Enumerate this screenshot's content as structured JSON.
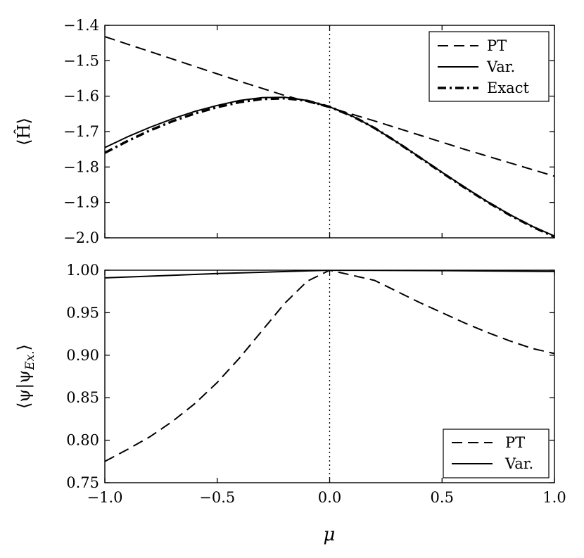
{
  "chart_data": [
    {
      "type": "line",
      "panel": "top",
      "ylabel": "⟨Ĥ⟩",
      "xlim": [
        -1.0,
        1.0
      ],
      "ylim": [
        -2.0,
        -1.4
      ],
      "yticks": [
        -2.0,
        -1.9,
        -1.8,
        -1.7,
        -1.6,
        -1.5,
        -1.4
      ],
      "ytick_labels": [
        "−2.0",
        "−1.9",
        "−1.8",
        "−1.7",
        "−1.6",
        "−1.5",
        "−1.4"
      ],
      "vline_x": 0.0,
      "legend": "top-right",
      "series": [
        {
          "name": "PT",
          "style": "dashed",
          "x": [
            -1.0,
            -0.8,
            -0.6,
            -0.4,
            -0.2,
            0.0,
            0.2,
            0.4,
            0.6,
            0.8,
            1.0
          ],
          "y": [
            -1.432,
            -1.474,
            -1.516,
            -1.558,
            -1.598,
            -1.632,
            -1.67,
            -1.71,
            -1.75,
            -1.788,
            -1.826
          ]
        },
        {
          "name": "Var.",
          "style": "solid",
          "x": [
            -1.0,
            -0.9,
            -0.8,
            -0.7,
            -0.6,
            -0.5,
            -0.4,
            -0.3,
            -0.2,
            -0.1,
            0.0,
            0.1,
            0.2,
            0.3,
            0.4,
            0.5,
            0.6,
            0.7,
            0.8,
            0.9,
            1.0
          ],
          "y": [
            -1.745,
            -1.715,
            -1.688,
            -1.664,
            -1.643,
            -1.626,
            -1.612,
            -1.604,
            -1.603,
            -1.612,
            -1.63,
            -1.656,
            -1.69,
            -1.73,
            -1.772,
            -1.815,
            -1.857,
            -1.897,
            -1.934,
            -1.967,
            -1.995
          ]
        },
        {
          "name": "Exact",
          "style": "dashdot",
          "x": [
            -1.0,
            -0.9,
            -0.8,
            -0.7,
            -0.6,
            -0.5,
            -0.4,
            -0.3,
            -0.2,
            -0.1,
            0.0,
            0.1,
            0.2,
            0.3,
            0.4,
            0.5,
            0.6,
            0.7,
            0.8,
            0.9,
            1.0
          ],
          "y": [
            -1.76,
            -1.727,
            -1.697,
            -1.671,
            -1.649,
            -1.631,
            -1.617,
            -1.608,
            -1.606,
            -1.613,
            -1.63,
            -1.656,
            -1.69,
            -1.73,
            -1.773,
            -1.816,
            -1.858,
            -1.898,
            -1.935,
            -1.968,
            -1.997
          ]
        }
      ]
    },
    {
      "type": "line",
      "panel": "bottom",
      "xlabel": "μ",
      "ylabel": "⟨ψ|ψ",
      "ylabel_sub": "Ex.",
      "ylabel_close": "⟩",
      "xlim": [
        -1.0,
        1.0
      ],
      "ylim": [
        0.75,
        1.0
      ],
      "xticks": [
        -1.0,
        -0.5,
        0.0,
        0.5,
        1.0
      ],
      "xtick_labels": [
        "−1.0",
        "−0.5",
        "0.0",
        "0.5",
        "1.0"
      ],
      "yticks": [
        0.75,
        0.8,
        0.85,
        0.9,
        0.95,
        1.0
      ],
      "ytick_labels": [
        "0.75",
        "0.80",
        "0.85",
        "0.90",
        "0.95",
        "1.00"
      ],
      "vline_x": 0.0,
      "legend": "bottom-right",
      "series": [
        {
          "name": "PT",
          "style": "dashed",
          "x": [
            -1.0,
            -0.9,
            -0.8,
            -0.7,
            -0.6,
            -0.5,
            -0.4,
            -0.3,
            -0.2,
            -0.1,
            0.0,
            0.1,
            0.2,
            0.3,
            0.4,
            0.5,
            0.6,
            0.7,
            0.8,
            0.9,
            1.0
          ],
          "y": [
            0.775,
            0.789,
            0.804,
            0.822,
            0.843,
            0.868,
            0.897,
            0.929,
            0.961,
            0.987,
            1.0,
            0.994,
            0.988,
            0.975,
            0.962,
            0.95,
            0.938,
            0.927,
            0.917,
            0.908,
            0.902
          ]
        },
        {
          "name": "Var.",
          "style": "solid",
          "x": [
            -1.0,
            -0.5,
            0.0,
            0.5,
            1.0
          ],
          "y": [
            0.991,
            0.996,
            1.0,
            0.9995,
            0.9985
          ]
        }
      ]
    }
  ]
}
